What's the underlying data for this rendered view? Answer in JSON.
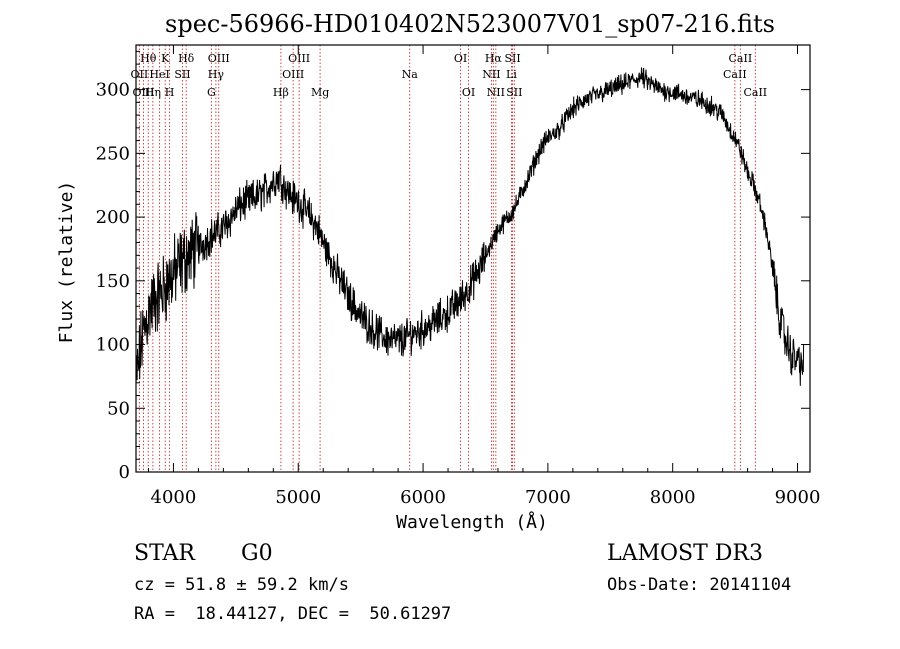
{
  "chart_data": {
    "type": "line",
    "title": "spec-56966-HD010402N523007V01_sp07-216.fits",
    "xlabel": "Wavelength (Å)",
    "ylabel": "Flux (relative)",
    "xlim": [
      3700,
      9100
    ],
    "ylim": [
      0,
      335
    ],
    "xticks": [
      4000,
      5000,
      6000,
      7000,
      8000,
      9000
    ],
    "yticks": [
      0,
      50,
      100,
      150,
      200,
      250,
      300
    ],
    "series": [
      {
        "name": "flux",
        "x": [
          3700,
          3750,
          3800,
          3850,
          3900,
          3950,
          4000,
          4050,
          4100,
          4150,
          4200,
          4250,
          4300,
          4350,
          4400,
          4450,
          4500,
          4550,
          4600,
          4650,
          4700,
          4750,
          4800,
          4850,
          4900,
          4950,
          5000,
          5050,
          5100,
          5150,
          5200,
          5300,
          5400,
          5500,
          5600,
          5700,
          5800,
          5850,
          5900,
          6000,
          6100,
          6200,
          6300,
          6350,
          6400,
          6450,
          6500,
          6550,
          6600,
          6650,
          6700,
          6750,
          6800,
          6850,
          6900,
          6950,
          7000,
          7050,
          7100,
          7150,
          7200,
          7300,
          7400,
          7500,
          7600,
          7700,
          7750,
          7800,
          7900,
          8000,
          8100,
          8200,
          8300,
          8350,
          8400,
          8450,
          8500,
          8550,
          8600,
          8650,
          8700,
          8750,
          8800,
          8850,
          8900,
          8950,
          9000,
          9050
        ],
        "values": [
          70,
          105,
          125,
          135,
          140,
          148,
          155,
          162,
          168,
          172,
          176,
          180,
          185,
          188,
          192,
          198,
          205,
          210,
          213,
          215,
          218,
          222,
          228,
          232,
          222,
          216,
          212,
          206,
          200,
          192,
          180,
          158,
          138,
          122,
          112,
          105,
          103,
          104,
          108,
          112,
          118,
          125,
          135,
          142,
          150,
          158,
          170,
          180,
          190,
          196,
          202,
          210,
          222,
          232,
          245,
          255,
          262,
          266,
          270,
          278,
          285,
          292,
          296,
          300,
          304,
          308,
          310,
          306,
          300,
          298,
          295,
          292,
          288,
          284,
          280,
          270,
          262,
          250,
          235,
          225,
          210,
          190,
          160,
          125,
          105,
          92,
          88,
          82
        ]
      }
    ],
    "lines": [
      {
        "label": "Hθ",
        "x": 3798,
        "row": 1
      },
      {
        "label": "OII",
        "x": 3727,
        "row": 2
      },
      {
        "label": "OIII",
        "x": 3760,
        "row": 3
      },
      {
        "label": "Hη",
        "x": 3835,
        "row": 3
      },
      {
        "label": "HeI",
        "x": 3889,
        "row": 2
      },
      {
        "label": "K",
        "x": 3934,
        "row": 1
      },
      {
        "label": "SII",
        "x": 4072,
        "row": 2
      },
      {
        "label": "H",
        "x": 3969,
        "row": 3
      },
      {
        "label": "Hδ",
        "x": 4102,
        "row": 1
      },
      {
        "label": "OIII",
        "x": 4363,
        "row": 1
      },
      {
        "label": "Hγ",
        "x": 4340,
        "row": 2
      },
      {
        "label": "G",
        "x": 4304,
        "row": 3
      },
      {
        "label": "Hβ",
        "x": 4861,
        "row": 3
      },
      {
        "label": "OIII",
        "x": 5007,
        "row": 1
      },
      {
        "label": "OIII",
        "x": 4959,
        "row": 2
      },
      {
        "label": "Mg",
        "x": 5175,
        "row": 3
      },
      {
        "label": "Na",
        "x": 5893,
        "row": 2
      },
      {
        "label": "OI",
        "x": 6300,
        "row": 1
      },
      {
        "label": "OI",
        "x": 6364,
        "row": 3
      },
      {
        "label": "Hα",
        "x": 6563,
        "row": 1
      },
      {
        "label": "SII",
        "x": 6717,
        "row": 1
      },
      {
        "label": "NII",
        "x": 6548,
        "row": 2
      },
      {
        "label": "Li",
        "x": 6708,
        "row": 2
      },
      {
        "label": "NII",
        "x": 6583,
        "row": 3
      },
      {
        "label": "SII",
        "x": 6731,
        "row": 3
      },
      {
        "label": "CaII",
        "x": 8542,
        "row": 1
      },
      {
        "label": "CaII",
        "x": 8498,
        "row": 2
      },
      {
        "label": "CaII",
        "x": 8662,
        "row": 3
      }
    ]
  },
  "info": {
    "obj_class": "STAR",
    "subclass": "G0",
    "survey": "LAMOST DR3",
    "cz": "cz = 51.8 ± 59.2 km/s",
    "obs_date": "Obs-Date: 20141104",
    "radec": "RA =  18.44127, DEC =  50.61297"
  },
  "colors": {
    "line_marker": "#c83030",
    "spectrum": "#000000"
  }
}
